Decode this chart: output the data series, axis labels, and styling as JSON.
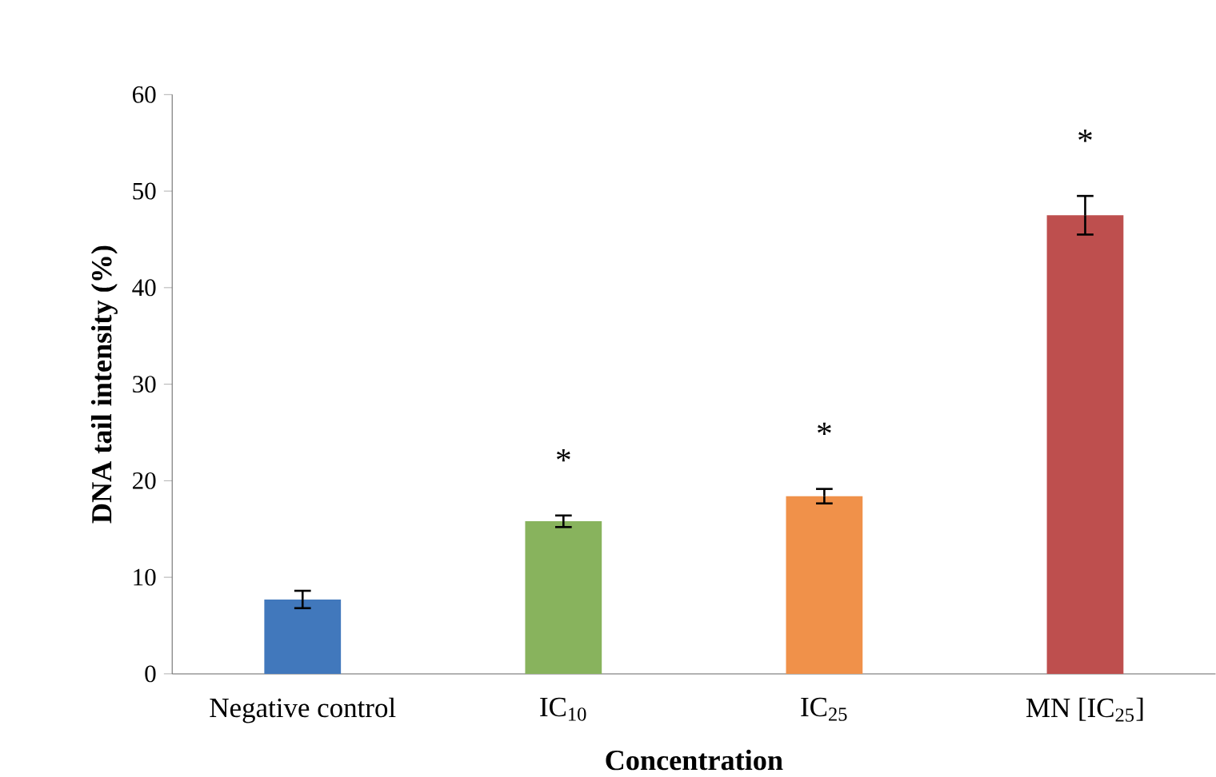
{
  "chart_data": {
    "type": "bar",
    "xlabel": "Concentration",
    "ylabel": "DNA tail intensity (%)",
    "categories": [
      "Negative control",
      "IC$_{10}$",
      "IC$_{25}$",
      "MN [IC$_{25}$]"
    ],
    "values": [
      7.7,
      15.8,
      18.4,
      47.5
    ],
    "errors": [
      0.9,
      0.6,
      0.75,
      2.0
    ],
    "colors": [
      "#4178bc",
      "#88b35d",
      "#f0914a",
      "#be4f4e"
    ],
    "ylim": [
      0,
      60
    ],
    "yticks": [
      0,
      10,
      20,
      30,
      40,
      50,
      60
    ],
    "annotations": [
      "*",
      "*",
      "*"
    ]
  }
}
